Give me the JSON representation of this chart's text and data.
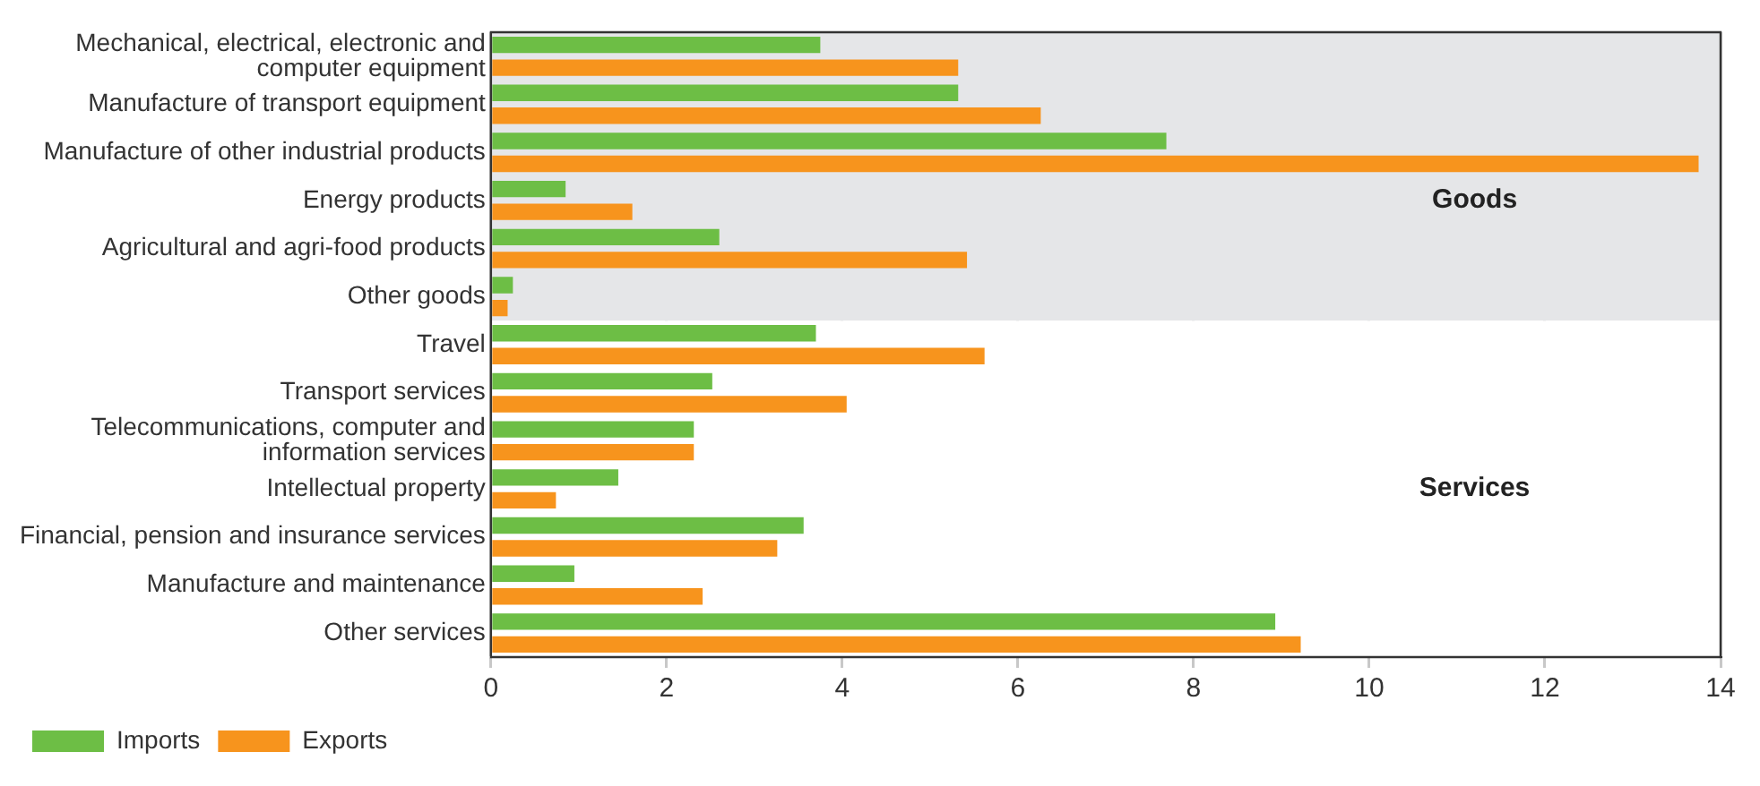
{
  "chart_data": {
    "type": "bar",
    "orientation": "horizontal",
    "categories": [
      "Mechanical, electrical, electronic and computer equipment",
      "Manufacture of transport equipment",
      "Manufacture of other industrial products",
      "Energy products",
      "Agricultural and agri-food products",
      "Other goods",
      "Travel",
      "Transport services",
      "Telecommunications, computer and information services",
      "Intellectual property",
      "Financial, pension and insurance services",
      "Manufacture and maintenance",
      "Other services"
    ],
    "series": [
      {
        "name": "Imports",
        "color": "#6dbe45",
        "values": [
          3.75,
          5.32,
          7.69,
          0.85,
          2.6,
          0.25,
          3.7,
          2.52,
          2.31,
          1.45,
          3.56,
          0.95,
          8.93
        ]
      },
      {
        "name": "Exports",
        "color": "#f7941d",
        "values": [
          5.32,
          6.26,
          13.75,
          1.61,
          5.42,
          0.19,
          5.62,
          4.05,
          2.31,
          0.74,
          3.26,
          2.41,
          9.22
        ]
      }
    ],
    "xlim": [
      0,
      14
    ],
    "xticks": [
      0,
      2,
      4,
      6,
      8,
      10,
      12,
      14
    ],
    "grid": "x",
    "legend": "bottom left",
    "bands": [
      {
        "axis": "y",
        "from": "Mechanical, electrical, electronic and computer equipment",
        "to": "Other goods",
        "label": "Goods",
        "color": "#e5e6e8"
      },
      {
        "axis": "y",
        "from": "Travel",
        "to": "Other services",
        "label": "Services",
        "color": "#ffffff"
      }
    ]
  }
}
